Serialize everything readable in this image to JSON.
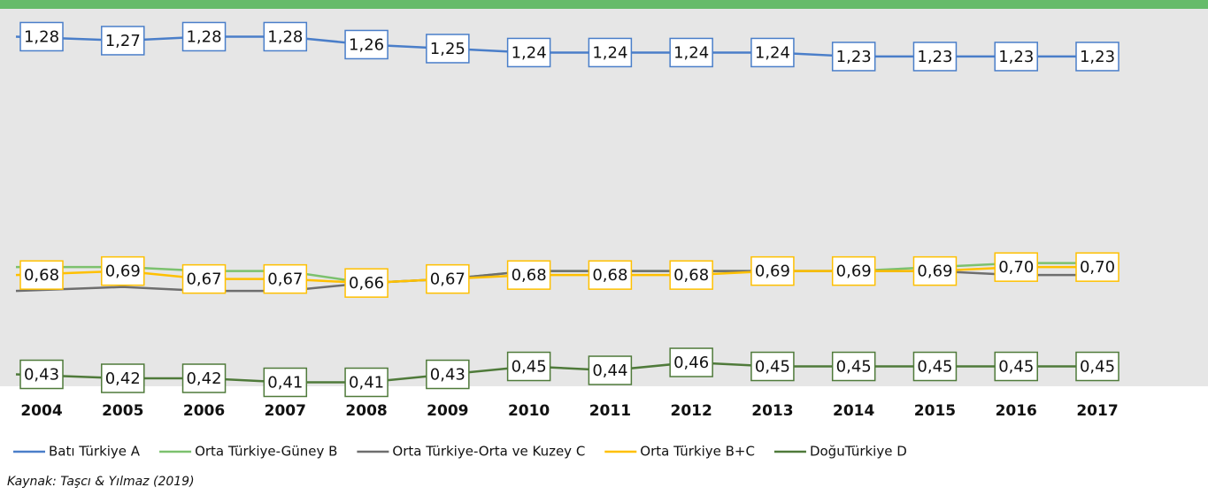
{
  "chart_data": {
    "type": "line",
    "categories": [
      "2004",
      "2005",
      "2006",
      "2007",
      "2008",
      "2009",
      "2010",
      "2011",
      "2012",
      "2013",
      "2014",
      "2015",
      "2016",
      "2017"
    ],
    "series": [
      {
        "name": "Batı Türkiye A",
        "color": "#4a7ec9",
        "values": [
          1.28,
          1.27,
          1.28,
          1.28,
          1.26,
          1.25,
          1.24,
          1.24,
          1.24,
          1.24,
          1.23,
          1.23,
          1.23,
          1.23
        ],
        "value_labels": [
          "1,28",
          "1,27",
          "1,28",
          "1,28",
          "1,26",
          "1,25",
          "1,24",
          "1,24",
          "1,24",
          "1,24",
          "1,23",
          "1,23",
          "1,23",
          "1,23"
        ]
      },
      {
        "name": "Orta Türkiye-Güney B",
        "color": "#7cc16e",
        "values": [
          0.7,
          0.7,
          0.69,
          0.69,
          0.66,
          0.67,
          0.69,
          0.69,
          0.69,
          0.69,
          0.69,
          0.7,
          0.71,
          0.71
        ]
      },
      {
        "name": "Orta Türkiye-Orta ve Kuzey C",
        "color": "#6e6e6e",
        "values": [
          0.64,
          0.65,
          0.64,
          0.64,
          0.66,
          0.67,
          0.69,
          0.69,
          0.69,
          0.69,
          0.69,
          0.69,
          0.68,
          0.68
        ]
      },
      {
        "name": "Orta Türkiye B+C",
        "color": "#ffc000",
        "values": [
          0.68,
          0.69,
          0.67,
          0.67,
          0.66,
          0.67,
          0.68,
          0.68,
          0.68,
          0.69,
          0.69,
          0.69,
          0.7,
          0.7
        ],
        "value_labels": [
          "0,68",
          "0,69",
          "0,67",
          "0,67",
          "0,66",
          "0,67",
          "0,68",
          "0,68",
          "0,68",
          "0,69",
          "0,69",
          "0,69",
          "0,70",
          "0,70"
        ]
      },
      {
        "name": "DoğuTürkiye D",
        "color": "#4f7a3a",
        "values": [
          0.43,
          0.42,
          0.42,
          0.41,
          0.41,
          0.43,
          0.45,
          0.44,
          0.46,
          0.45,
          0.45,
          0.45,
          0.45,
          0.45
        ],
        "value_labels": [
          "0,43",
          "0,42",
          "0,42",
          "0,41",
          "0,41",
          "0,43",
          "0,45",
          "0,44",
          "0,46",
          "0,45",
          "0,45",
          "0,45",
          "0,45",
          "0,45"
        ]
      }
    ],
    "ylim": [
      0.4,
      1.35
    ],
    "source": "Kaynak: Taşcı & Yılmaz (2019)"
  }
}
